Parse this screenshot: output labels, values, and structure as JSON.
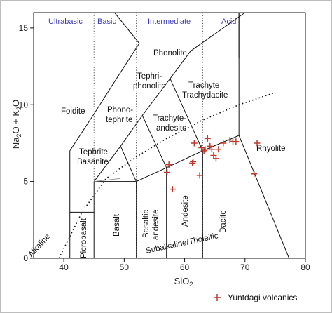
{
  "chart_data": {
    "type": "scatter",
    "xlim": [
      35,
      80
    ],
    "ylim": [
      0,
      16
    ],
    "x_ticks": [
      "40",
      "50",
      "60",
      "70",
      "80"
    ],
    "y_ticks": [
      "0",
      "5",
      "10",
      "15"
    ],
    "xlabel": {
      "base": "SiO",
      "sub": "2"
    },
    "ylabel": {
      "p1": "Na",
      "s1": "2",
      "p2": "O + K",
      "s2": "2",
      "p3": "O"
    },
    "grid": false,
    "legend_position": "bottom-right",
    "series": [
      {
        "name": "Yuntdagi volcanics",
        "marker": "plus",
        "color": "#c0392b",
        "points": [
          [
            57.1,
            5.6
          ],
          [
            57.4,
            6.1
          ],
          [
            58.0,
            4.5
          ],
          [
            61.3,
            6.2
          ],
          [
            61.4,
            6.3
          ],
          [
            61.6,
            7.5
          ],
          [
            62.5,
            5.4
          ],
          [
            62.8,
            7.2
          ],
          [
            63.2,
            7.0
          ],
          [
            63.4,
            7.1
          ],
          [
            63.8,
            7.8
          ],
          [
            64.2,
            7.3
          ],
          [
            64.5,
            7.1
          ],
          [
            64.8,
            6.7
          ],
          [
            65.2,
            6.5
          ],
          [
            65.6,
            7.1
          ],
          [
            66.4,
            7.5
          ],
          [
            67.5,
            7.7
          ],
          [
            68.0,
            7.6
          ],
          [
            68.5,
            7.6
          ],
          [
            71.5,
            5.5
          ],
          [
            72.0,
            7.5
          ]
        ]
      }
    ],
    "group_labels": [
      "Ultrabasic",
      "Basic",
      "Intermediate",
      "Acid"
    ],
    "fields": {
      "picrobasalt": "Picrobasalt",
      "basalt": "Basalt",
      "basaltic_andesite_1": "Basaltic",
      "basaltic_andesite_2": "andesite",
      "andesite": "Andesite",
      "dacite": "Dacite",
      "rhyolite": "Rhyolite",
      "foidite": "Foidite",
      "phonolite": "Phonolite",
      "tephriphonolite_1": "Tephri-",
      "tephriphonolite_2": "phonolite",
      "phonotephrite_1": "Phono-",
      "phonotephrite_2": "tephrite",
      "trachyte_1": "Trachyte",
      "trachyte_2": "Trachydacite",
      "trachyandesite_1": "Trachyte-",
      "trachyandesite_2": "andesite",
      "tephrite_1": "Tephrite",
      "tephrite_2": "Basanite",
      "alkaline": "Alkaline",
      "subalkaline": "Subalkaline/Tholeitic"
    }
  }
}
